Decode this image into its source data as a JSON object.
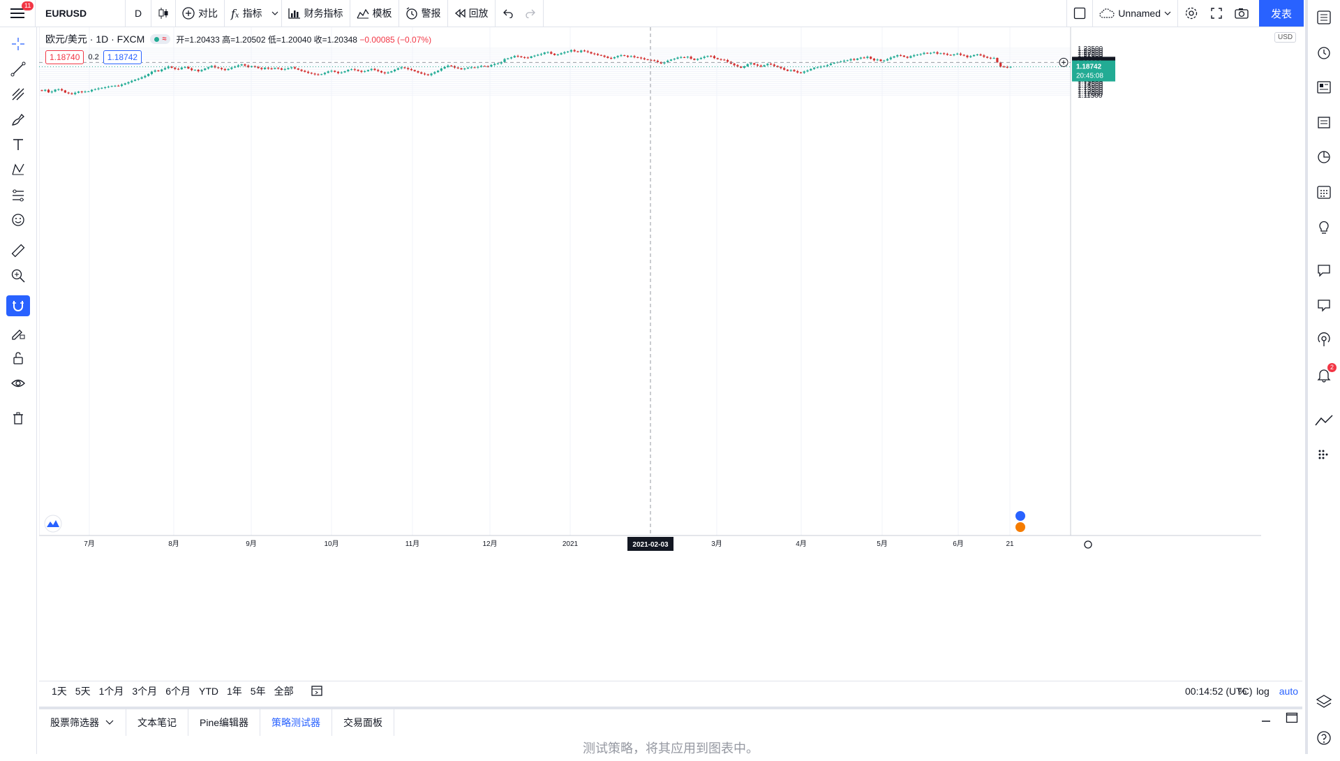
{
  "toolbar": {
    "menu_badge": "11",
    "symbol": "EURUSD",
    "interval": "D",
    "compare_label": "对比",
    "indicators_label": "指标",
    "financials_label": "财务指标",
    "templates_label": "模板",
    "alert_label": "警报",
    "replay_label": "回放",
    "layout_name": "Unnamed",
    "publish_label": "发表"
  },
  "legend": {
    "title": "欧元/美元 · 1D · FXCM",
    "open": "开=1.20433",
    "high": "高=1.20502",
    "low": "低=1.20040",
    "close": "收=1.20348",
    "change": "−0.00085 (−0.07%)",
    "sell_price": "1.18740",
    "spread": "0.2",
    "buy_price": "1.18742",
    "currency": "USD"
  },
  "price_axis": {
    "labels": [
      "1.23500",
      "1.23000",
      "1.22500",
      "1.22000",
      "1.21500",
      "1.21000",
      "1.20500",
      "1.19500",
      "1.19000",
      "1.18500",
      "1.18000",
      "1.17500",
      "1.17000",
      "1.16500",
      "1.16000",
      "1.15500",
      "1.15000",
      "1.14500",
      "1.14000",
      "1.13500",
      "1.13000",
      "1.12500",
      "1.12000",
      "1.11500"
    ],
    "crosshair_price": "1.19864",
    "last_price": "1.18742",
    "countdown": "20:45:08"
  },
  "time_axis": {
    "labels": [
      "7月",
      "8月",
      "9月",
      "10月",
      "11月",
      "12月",
      "2021",
      "3月",
      "4月",
      "5月",
      "6月",
      "21"
    ],
    "crosshair_date": "2021-02-03"
  },
  "ranges": [
    "1天",
    "5天",
    "1个月",
    "3个月",
    "6个月",
    "YTD",
    "1年",
    "5年",
    "全部"
  ],
  "status": {
    "clock": "00:14:52 (UTC)",
    "percent": "%",
    "log": "log",
    "auto": "auto"
  },
  "bottom_tabs": [
    "股票筛选器",
    "文本笔记",
    "Pine编辑器",
    "策略测试器",
    "交易面板"
  ],
  "bottom_message": "测试策略，将其应用到图表中。",
  "right_badge": "2",
  "colors": {
    "up": "#22ab94",
    "down": "#d32f2f",
    "accent": "#2962ff",
    "grid": "#f0f3fa"
  },
  "chart_data": {
    "type": "candlestick",
    "title": "欧元/美元 · 1D · FXCM",
    "ylim": [
      1.1125,
      1.2375
    ],
    "closes": [
      1.126,
      1.1285,
      1.122,
      1.124,
      1.129,
      1.13,
      1.127,
      1.1215,
      1.1195,
      1.1175,
      1.121,
      1.124,
      1.1225,
      1.124,
      1.1245,
      1.1285,
      1.13,
      1.132,
      1.1335,
      1.135,
      1.1365,
      1.1382,
      1.139,
      1.1385,
      1.142,
      1.145,
      1.148,
      1.1515,
      1.1545,
      1.157,
      1.1605,
      1.164,
      1.169,
      1.175,
      1.178,
      1.176,
      1.1805,
      1.184,
      1.188,
      1.185,
      1.182,
      1.181,
      1.1855,
      1.187,
      1.183,
      1.179,
      1.1795,
      1.176,
      1.179,
      1.183,
      1.186,
      1.1895,
      1.186,
      1.184,
      1.1815,
      1.179,
      1.182,
      1.1855,
      1.188,
      1.191,
      1.1935,
      1.1905,
      1.1865,
      1.189,
      1.187,
      1.184,
      1.1815,
      1.185,
      1.183,
      1.182,
      1.1845,
      1.183,
      1.18,
      1.1815,
      1.184,
      1.186,
      1.183,
      1.18,
      1.177,
      1.1745,
      1.172,
      1.17,
      1.168,
      1.167,
      1.1685,
      1.172,
      1.1755,
      1.177,
      1.1745,
      1.1715,
      1.173,
      1.176,
      1.1795,
      1.181,
      1.1795,
      1.177,
      1.1745,
      1.176,
      1.179,
      1.182,
      1.179,
      1.1765,
      1.173,
      1.171,
      1.173,
      1.176,
      1.18,
      1.1835,
      1.186,
      1.184,
      1.1815,
      1.179,
      1.176,
      1.173,
      1.17,
      1.168,
      1.166,
      1.17,
      1.1735,
      1.1775,
      1.183,
      1.187,
      1.1905,
      1.189,
      1.1855,
      1.1835,
      1.181,
      1.183,
      1.185,
      1.186,
      1.1855,
      1.1875,
      1.1895,
      1.189,
      1.188,
      1.192,
      1.1945,
      1.196,
      1.1995,
      1.207,
      1.209,
      1.2115,
      1.215,
      1.214,
      1.212,
      1.211,
      1.21,
      1.214,
      1.216,
      1.218,
      1.22,
      1.224,
      1.225,
      1.221,
      1.2175,
      1.219,
      1.222,
      1.2245,
      1.2265,
      1.23,
      1.227,
      1.225,
      1.229,
      1.227,
      1.225,
      1.2215,
      1.22,
      1.2175,
      1.216,
      1.213,
      1.21,
      1.209,
      1.212,
      1.215,
      1.217,
      1.2155,
      1.213,
      1.2145,
      1.212,
      1.211,
      1.209,
      1.2065,
      1.205,
      1.204,
      1.2025,
      1.1995,
      1.196,
      1.199,
      1.203,
      1.206,
      1.208,
      1.211,
      1.212,
      1.2115,
      1.213,
      1.208,
      1.205,
      1.2075,
      1.21,
      1.213,
      1.215,
      1.2145,
      1.2095,
      1.207,
      1.2055,
      1.2045,
      1.2005,
      1.1955,
      1.1915,
      1.188,
      1.185,
      1.1885,
      1.194,
      1.1965,
      1.193,
      1.1905,
      1.188,
      1.1915,
      1.195,
      1.193,
      1.1895,
      1.187,
      1.184,
      1.18,
      1.177,
      1.179,
      1.176,
      1.173,
      1.172,
      1.1755,
      1.178,
      1.182,
      1.185,
      1.186,
      1.188,
      1.1895,
      1.192,
      1.1955,
      1.198,
      1.1995,
      1.201,
      1.203,
      1.204,
      1.207,
      1.205,
      1.2085,
      1.211,
      1.21,
      1.213,
      1.208,
      1.204,
      1.206,
      1.202,
      1.2035,
      1.207,
      1.211,
      1.214,
      1.217,
      1.216,
      1.213,
      1.2105,
      1.2145,
      1.217,
      1.2185,
      1.22,
      1.223,
      1.2215,
      1.223,
      1.2245,
      1.221,
      1.222,
      1.2205,
      1.218,
      1.217,
      1.219,
      1.221,
      1.218,
      1.216,
      1.212,
      1.2145,
      1.2175,
      1.219,
      1.2165,
      1.213,
      1.2105,
      1.2095,
      1.21,
      1.1985,
      1.188,
      1.187,
      1.186,
      1.1874
    ],
    "last_price": 1.18742,
    "crosshair": {
      "date": "2021-02-03",
      "price": 1.19864
    }
  }
}
